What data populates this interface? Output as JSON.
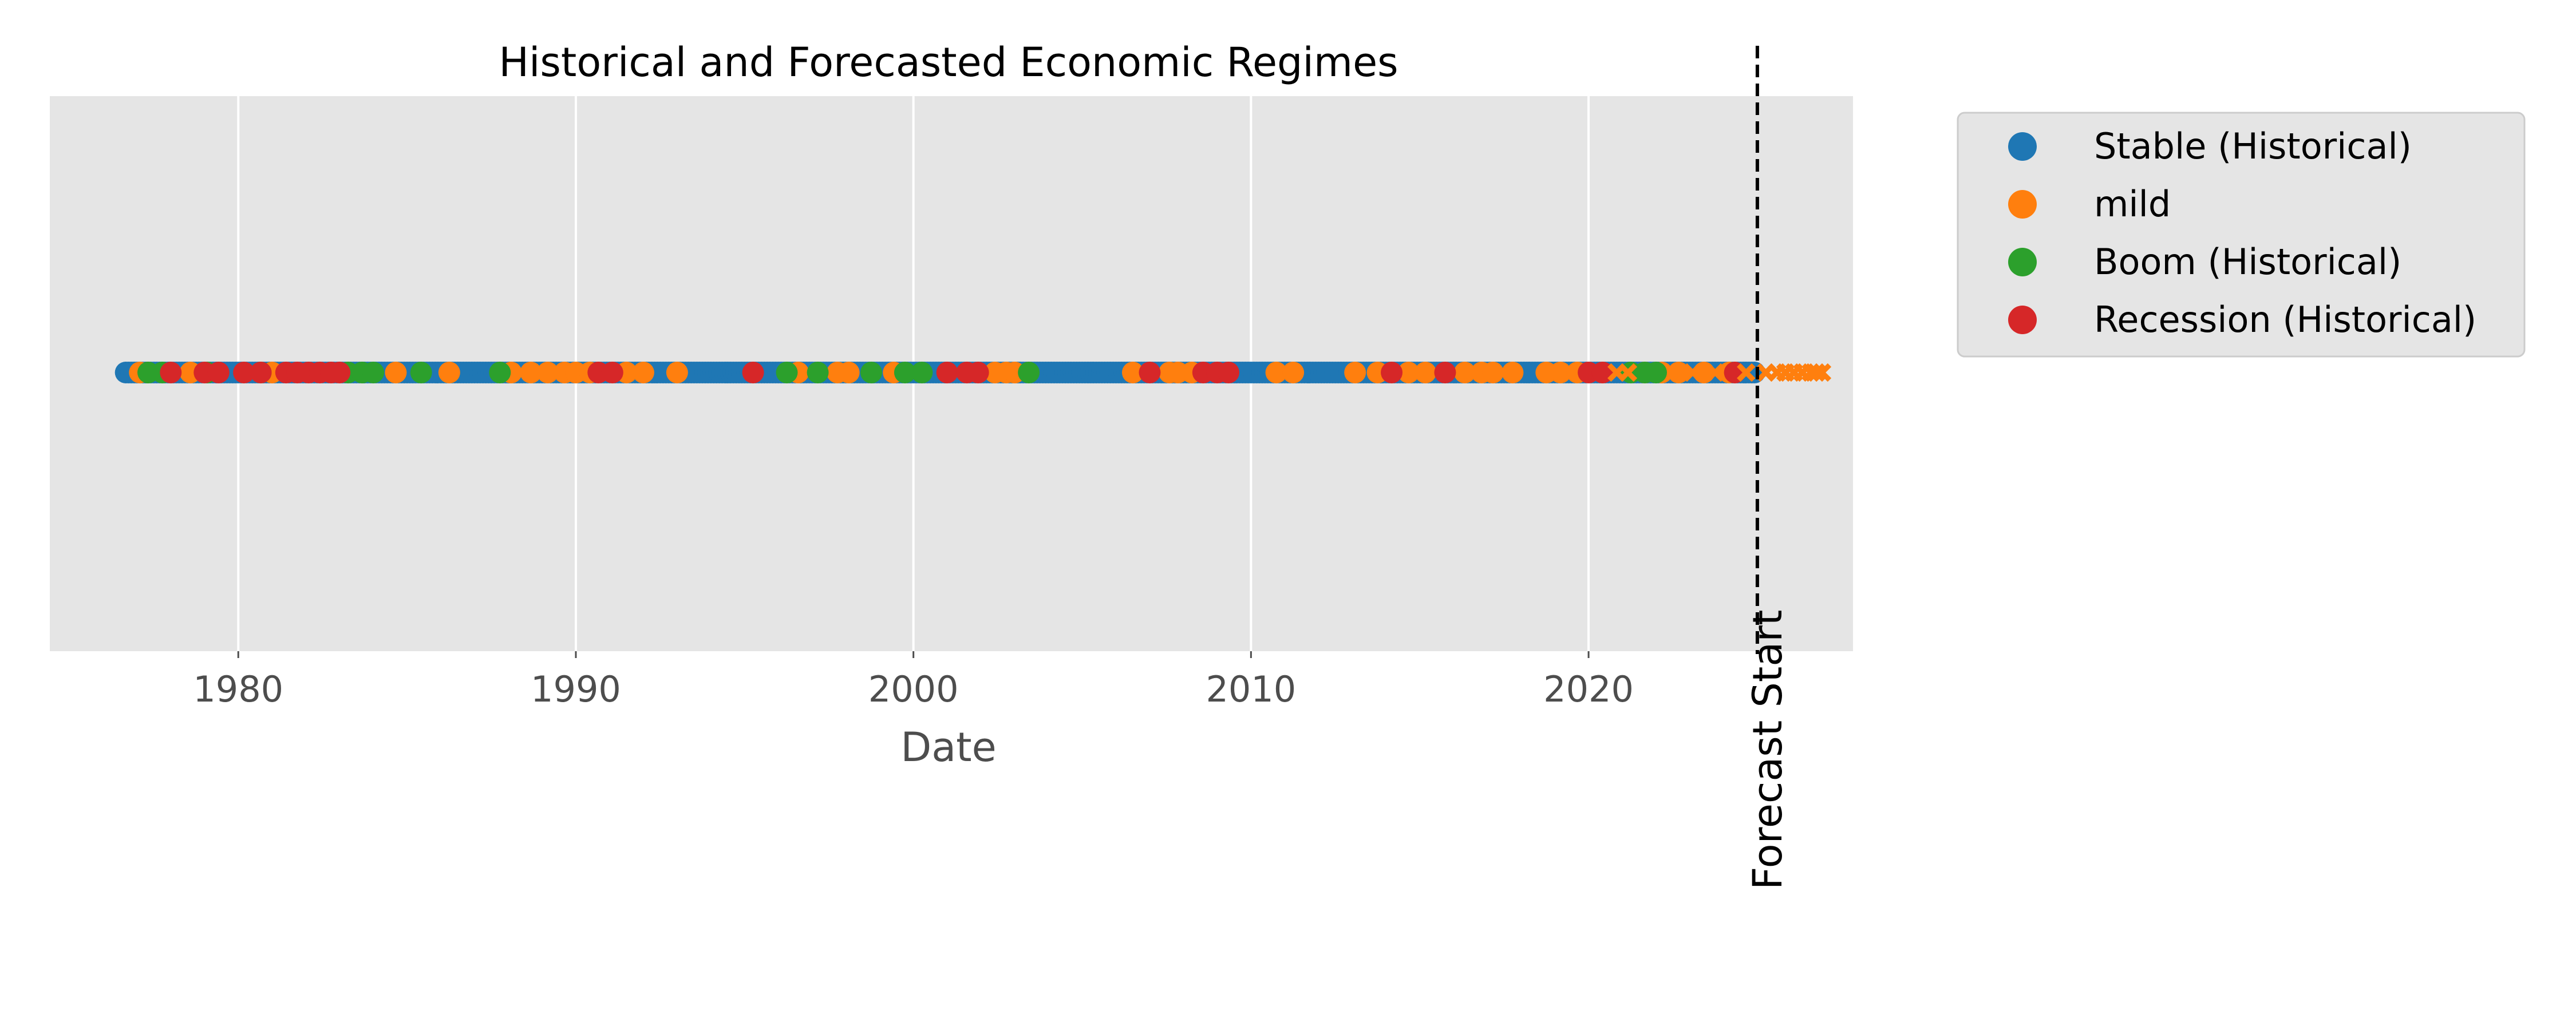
{
  "chart_data": {
    "type": "scatter",
    "title": "Historical and Forecasted Economic Regimes",
    "xlabel": "Date",
    "ylabel": "",
    "x_axis": "date",
    "xlim": [
      "1974-06-01",
      "2027-11-01"
    ],
    "x_ticks": [
      "1980",
      "1990",
      "2000",
      "2010",
      "2020"
    ],
    "y_visible": false,
    "grid": true,
    "background": "#e5e5e5",
    "legend_position": "outside-top-right",
    "series": [
      {
        "name": "Stable (Historical)",
        "color": "#1f77b4",
        "marker": "circle",
        "range": [
          "1976-09",
          "2024-12"
        ]
      },
      {
        "name": "mild",
        "color": "#ff7f0e",
        "marker": "circle",
        "dates": [
          "1977-02",
          "1978-08",
          "1981-01",
          "1984-09",
          "1986-04",
          "1988-02",
          "1988-09",
          "1989-03",
          "1989-09",
          "1990-01",
          "1990-06",
          "1991-07",
          "1992-01",
          "1993-01",
          "1996-08",
          "1997-10",
          "1998-02",
          "1999-06",
          "2002-06",
          "2002-10",
          "2003-01",
          "2006-07",
          "2007-08",
          "2007-11",
          "2008-04",
          "2010-10",
          "2011-04",
          "2013-02",
          "2013-10",
          "2014-09",
          "2015-03",
          "2016-05",
          "2016-11",
          "2017-03",
          "2017-10",
          "2018-10",
          "2019-03",
          "2019-09",
          "2021-09",
          "2022-03",
          "2022-09",
          "2023-06",
          "2024-03"
        ]
      },
      {
        "name": "Boom (Historical)",
        "color": "#2ca02c",
        "marker": "circle",
        "dates": [
          "1977-05",
          "1977-10",
          "1979-02",
          "1980-09",
          "1983-04",
          "1983-09",
          "1984-01",
          "1985-06",
          "1987-10",
          "1996-04",
          "1997-03",
          "1998-10",
          "1999-10",
          "2000-04",
          "2003-06",
          "2021-04",
          "2021-09",
          "2022-01"
        ]
      },
      {
        "name": "Recession (Historical)",
        "color": "#d62728",
        "marker": "circle",
        "dates": [
          "1978-01",
          "1979-01",
          "1979-06",
          "1980-03",
          "1980-09",
          "1981-06",
          "1981-10",
          "1982-02",
          "1982-06",
          "1982-10",
          "1983-01",
          "1990-09",
          "1991-02",
          "1995-04",
          "2001-01",
          "2001-08",
          "2001-12",
          "2007-01",
          "2008-08",
          "2009-01",
          "2009-05",
          "2014-03",
          "2015-10",
          "2020-01",
          "2020-06",
          "2024-05"
        ]
      },
      {
        "name": "",
        "color": "#ff7f0e",
        "marker": "x",
        "dates": [
          "2020-11",
          "2021-03",
          "2022-09",
          "2023-02",
          "2023-10",
          "2024-09",
          "2025-04",
          "2025-08",
          "2025-11",
          "2026-02",
          "2026-05",
          "2026-08",
          "2026-10",
          "2026-12"
        ]
      }
    ],
    "annotations": [
      {
        "type": "vline",
        "x": "2025-01-01",
        "style": "dashed",
        "color": "#000000",
        "label": "Forecast Start"
      }
    ]
  }
}
